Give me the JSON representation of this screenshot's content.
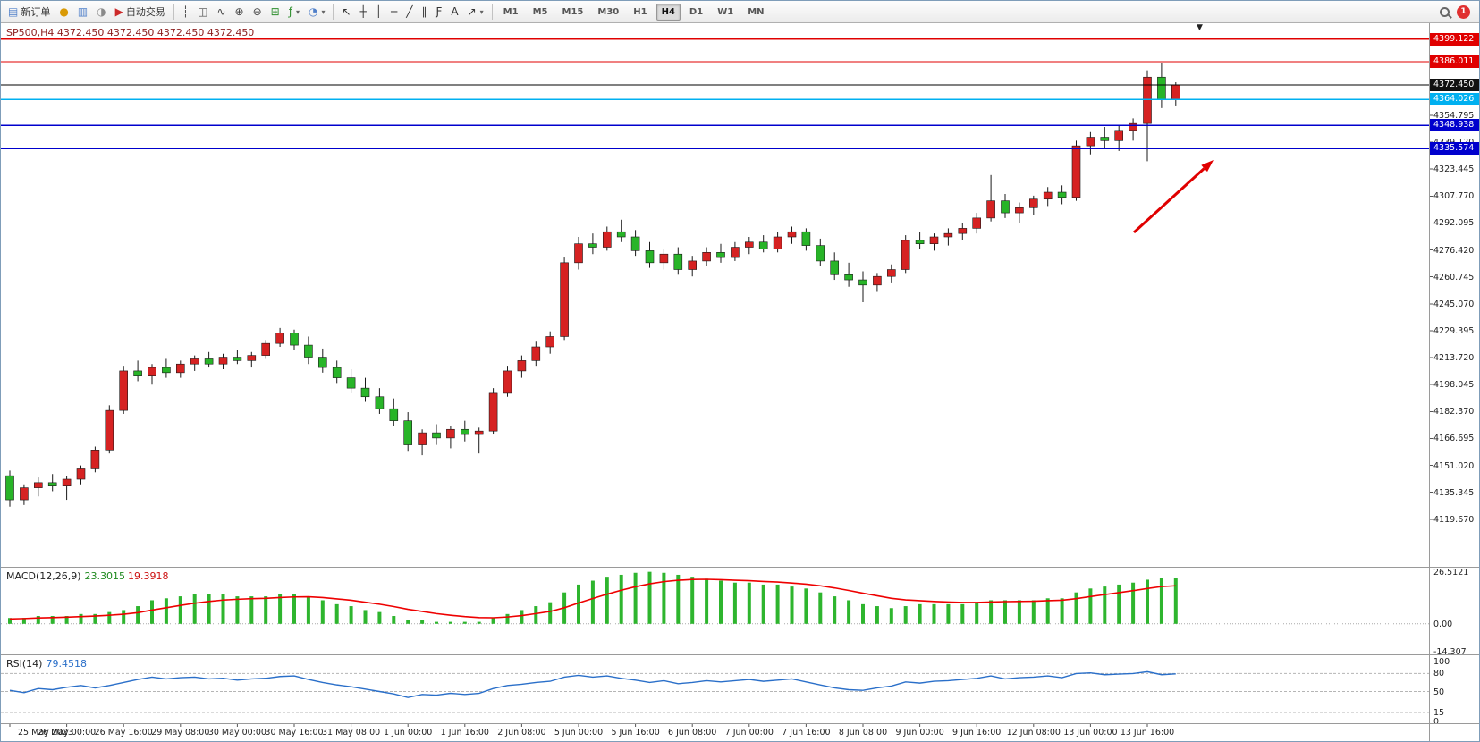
{
  "toolbar": {
    "groups": [
      {
        "name": "trade-group",
        "items": [
          {
            "name": "new-order-button",
            "icon": "new-order-icon",
            "glyph": "▤",
            "glyph_color": "#4f7fc9",
            "label": "新订单"
          },
          {
            "name": "gold-symbol-icon",
            "icon": "gold-symbol-icon",
            "glyph": "●",
            "glyph_color": "#d99a06"
          },
          {
            "name": "market-watch-icon",
            "icon": "market-watch-icon",
            "glyph": "▥",
            "glyph_color": "#4f7fc9"
          },
          {
            "name": "navigator-icon",
            "icon": "navigator-icon",
            "glyph": "◑",
            "glyph_color": "#8a8a8a"
          },
          {
            "name": "autotrading-button",
            "icon": "autotrading-icon",
            "glyph": "▶",
            "glyph_color": "#cc2a2a",
            "label": "自动交易"
          }
        ]
      },
      {
        "name": "chart-controls-group",
        "items": [
          {
            "name": "bar-chart-icon",
            "glyph": "┆",
            "glyph_color": "#444444"
          },
          {
            "name": "candlestick-chart-icon",
            "glyph": "◫",
            "glyph_color": "#444444"
          },
          {
            "name": "line-chart-icon",
            "glyph": "∿",
            "glyph_color": "#444444"
          },
          {
            "name": "zoom-in-icon",
            "glyph": "⊕",
            "glyph_color": "#444444"
          },
          {
            "name": "zoom-out-icon",
            "glyph": "⊖",
            "glyph_color": "#444444"
          },
          {
            "name": "tile-windows-icon",
            "glyph": "⊞",
            "glyph_color": "#2f8f2f"
          },
          {
            "name": "indicators-icon",
            "glyph": "ƒ",
            "glyph_color": "#2f8f2f",
            "caret": true
          },
          {
            "name": "periods-icon",
            "glyph": "◔",
            "glyph_color": "#4f7fc9",
            "caret": true
          }
        ]
      },
      {
        "name": "drawing-tools-group",
        "items": [
          {
            "name": "cursor-icon",
            "glyph": "↖",
            "glyph_color": "#333333"
          },
          {
            "name": "crosshair-icon",
            "glyph": "┼",
            "glyph_color": "#333333"
          },
          {
            "name": "vertical-line-icon",
            "glyph": "│",
            "glyph_color": "#333333"
          },
          {
            "name": "horizontal-line-icon",
            "glyph": "─",
            "glyph_color": "#333333"
          },
          {
            "name": "trendline-icon",
            "glyph": "╱",
            "glyph_color": "#333333"
          },
          {
            "name": "equidistant-channel-icon",
            "glyph": "∥",
            "glyph_color": "#333333"
          },
          {
            "name": "fibonacci-icon",
            "glyph": "Ƒ",
            "glyph_color": "#333333"
          },
          {
            "name": "text-label-icon",
            "glyph": "A",
            "glyph_color": "#333333"
          },
          {
            "name": "arrows-tool-icon",
            "glyph": "↗",
            "glyph_color": "#333333",
            "caret": true
          }
        ]
      },
      {
        "name": "timeframe-group",
        "items": [
          {
            "name": "timeframe-m1",
            "label": "M1"
          },
          {
            "name": "timeframe-m5",
            "label": "M5"
          },
          {
            "name": "timeframe-m15",
            "label": "M15"
          },
          {
            "name": "timeframe-m30",
            "label": "M30"
          },
          {
            "name": "timeframe-h1",
            "label": "H1"
          },
          {
            "name": "timeframe-h4",
            "label": "H4",
            "active": true
          },
          {
            "name": "timeframe-d1",
            "label": "D1"
          },
          {
            "name": "timeframe-w1",
            "label": "W1"
          },
          {
            "name": "timeframe-mn",
            "label": "MN"
          }
        ]
      }
    ],
    "right": [
      {
        "name": "search-icon",
        "type": "search"
      },
      {
        "name": "notification-badge",
        "label": "1",
        "color": "#e03030"
      }
    ]
  },
  "chart_data": {
    "type": "candlestick",
    "symbol": "SP500",
    "timeframe": "H4",
    "title": "SP500,H4 4372.450 4372.450 4372.450 4372.450",
    "ohlc_display": [
      "4372.450",
      "4372.450",
      "4372.450",
      "4372.450"
    ],
    "shift_marker_glyph": "▼",
    "up_color": "#d62222",
    "down_color": "#28b428",
    "current_price": {
      "value": 4372.45,
      "label": "4372.450",
      "line_color": "#000000",
      "badge_color": "#111111"
    },
    "levels": [
      {
        "name": "resistance-line-1",
        "price": 4399.122,
        "label": "4399.122",
        "color": "#e00000",
        "width": 1.3
      },
      {
        "name": "resistance-line-2",
        "price": 4386.011,
        "label": "4386.011",
        "color": "#e00000",
        "width": 1.3
      },
      {
        "name": "support-line-cyan",
        "price": 4364.026,
        "label": "4364.026",
        "color": "#00b0f0",
        "width": 1.8
      },
      {
        "name": "support-line-blue-1",
        "price": 4348.938,
        "label": "4348.938",
        "color": "#0000cd",
        "width": 1.5
      },
      {
        "name": "support-line-blue-2",
        "price": 4335.574,
        "label": "4335.574",
        "color": "#0000cd",
        "width": 2
      }
    ],
    "price_axis_labels": [
      "4354.795",
      "4339.120",
      "4323.445",
      "4307.770",
      "4292.095",
      "4276.420",
      "4260.745",
      "4245.070",
      "4229.395",
      "4213.720",
      "4198.045",
      "4182.370",
      "4166.695",
      "4151.020",
      "4135.345",
      "4119.670"
    ],
    "time_axis_labels": [
      "25 May 2023",
      "26 May 00:00",
      "26 May 16:00",
      "29 May 08:00",
      "30 May 00:00",
      "30 May 16:00",
      "31 May 08:00",
      "1 Jun 00:00",
      "1 Jun 16:00",
      "2 Jun 08:00",
      "5 Jun 00:00",
      "5 Jun 16:00",
      "6 Jun 08:00",
      "7 Jun 00:00",
      "7 Jun 16:00",
      "8 Jun 08:00",
      "9 Jun 00:00",
      "9 Jun 16:00",
      "12 Jun 08:00",
      "13 Jun 00:00",
      "13 Jun 16:00"
    ],
    "candles": [
      [
        4145,
        4148,
        4127,
        4131
      ],
      [
        4131,
        4140,
        4128,
        4138
      ],
      [
        4138,
        4144,
        4133,
        4141
      ],
      [
        4141,
        4146,
        4136,
        4139
      ],
      [
        4139,
        4145,
        4131,
        4143
      ],
      [
        4143,
        4151,
        4140,
        4149
      ],
      [
        4149,
        4162,
        4147,
        4160
      ],
      [
        4160,
        4186,
        4158,
        4183
      ],
      [
        4183,
        4209,
        4181,
        4206
      ],
      [
        4206,
        4212,
        4200,
        4203
      ],
      [
        4203,
        4210,
        4198,
        4208
      ],
      [
        4208,
        4213,
        4202,
        4205
      ],
      [
        4205,
        4212,
        4202,
        4210
      ],
      [
        4210,
        4215,
        4206,
        4213
      ],
      [
        4213,
        4217,
        4208,
        4210
      ],
      [
        4210,
        4216,
        4207,
        4214
      ],
      [
        4214,
        4218,
        4210,
        4212
      ],
      [
        4212,
        4217,
        4208,
        4215
      ],
      [
        4215,
        4224,
        4213,
        4222
      ],
      [
        4222,
        4231,
        4220,
        4228
      ],
      [
        4228,
        4230,
        4218,
        4221
      ],
      [
        4221,
        4226,
        4210,
        4214
      ],
      [
        4214,
        4219,
        4205,
        4208
      ],
      [
        4208,
        4212,
        4199,
        4202
      ],
      [
        4202,
        4207,
        4193,
        4196
      ],
      [
        4196,
        4202,
        4188,
        4191
      ],
      [
        4191,
        4196,
        4181,
        4184
      ],
      [
        4184,
        4190,
        4174,
        4177
      ],
      [
        4177,
        4182,
        4159,
        4163
      ],
      [
        4163,
        4172,
        4157,
        4170
      ],
      [
        4170,
        4175,
        4163,
        4167
      ],
      [
        4167,
        4174,
        4161,
        4172
      ],
      [
        4172,
        4177,
        4165,
        4169
      ],
      [
        4169,
        4173,
        4158,
        4171
      ],
      [
        4171,
        4196,
        4169,
        4193
      ],
      [
        4193,
        4209,
        4191,
        4206
      ],
      [
        4206,
        4215,
        4202,
        4212
      ],
      [
        4212,
        4223,
        4209,
        4220
      ],
      [
        4220,
        4229,
        4216,
        4226
      ],
      [
        4226,
        4272,
        4224,
        4269
      ],
      [
        4269,
        4284,
        4265,
        4280
      ],
      [
        4280,
        4286,
        4274,
        4278
      ],
      [
        4278,
        4290,
        4276,
        4287
      ],
      [
        4287,
        4294,
        4281,
        4284
      ],
      [
        4284,
        4288,
        4273,
        4276
      ],
      [
        4276,
        4281,
        4266,
        4269
      ],
      [
        4269,
        4277,
        4265,
        4274
      ],
      [
        4274,
        4278,
        4262,
        4265
      ],
      [
        4265,
        4273,
        4261,
        4270
      ],
      [
        4270,
        4278,
        4267,
        4275
      ],
      [
        4275,
        4280,
        4269,
        4272
      ],
      [
        4272,
        4281,
        4270,
        4278
      ],
      [
        4278,
        4284,
        4274,
        4281
      ],
      [
        4281,
        4285,
        4275,
        4277
      ],
      [
        4277,
        4287,
        4275,
        4284
      ],
      [
        4284,
        4290,
        4280,
        4287
      ],
      [
        4287,
        4289,
        4276,
        4279
      ],
      [
        4279,
        4283,
        4267,
        4270
      ],
      [
        4270,
        4275,
        4259,
        4262
      ],
      [
        4262,
        4269,
        4255,
        4259
      ],
      [
        4259,
        4264,
        4246,
        4256
      ],
      [
        4256,
        4263,
        4252,
        4261
      ],
      [
        4261,
        4268,
        4257,
        4265
      ],
      [
        4265,
        4285,
        4263,
        4282
      ],
      [
        4282,
        4287,
        4277,
        4280
      ],
      [
        4280,
        4286,
        4276,
        4284
      ],
      [
        4284,
        4289,
        4279,
        4286
      ],
      [
        4286,
        4292,
        4282,
        4289
      ],
      [
        4289,
        4298,
        4286,
        4295
      ],
      [
        4295,
        4320,
        4293,
        4305
      ],
      [
        4305,
        4309,
        4295,
        4298
      ],
      [
        4298,
        4304,
        4292,
        4301
      ],
      [
        4301,
        4308,
        4297,
        4306
      ],
      [
        4306,
        4313,
        4302,
        4310
      ],
      [
        4310,
        4314,
        4303,
        4307
      ],
      [
        4307,
        4340,
        4305,
        4337
      ],
      [
        4337,
        4345,
        4332,
        4342
      ],
      [
        4342,
        4348,
        4336,
        4340
      ],
      [
        4340,
        4349,
        4334,
        4346
      ],
      [
        4346,
        4353,
        4340,
        4350
      ],
      [
        4350,
        4381,
        4328,
        4377
      ],
      [
        4377,
        4385,
        4359,
        4364
      ],
      [
        4364,
        4374,
        4360,
        4372.45
      ]
    ],
    "macd": {
      "label": "MACD(12,26,9)",
      "value_main": "23.3015",
      "value_signal": "19.3918",
      "axis_labels": [
        "26.5121",
        "0.00",
        "-14.307"
      ],
      "histogram_color": "#2eb52e",
      "signal_color": "#ee0000",
      "histogram": [
        3,
        3,
        4,
        4,
        4,
        5,
        5,
        6,
        7,
        9,
        12,
        13,
        14,
        15,
        15,
        15,
        14,
        14,
        14,
        15,
        15,
        14,
        12,
        10,
        9,
        7,
        6,
        4,
        2,
        2,
        1,
        1,
        1,
        1,
        3,
        5,
        7,
        9,
        11,
        16,
        20,
        22,
        24,
        25,
        26,
        26.5,
        26,
        25,
        24,
        23,
        22,
        21,
        21,
        20,
        20,
        19,
        18,
        16,
        14,
        12,
        10,
        9,
        8,
        9,
        10,
        10,
        10,
        10,
        11,
        12,
        12,
        12,
        12,
        13,
        13,
        16,
        18,
        19,
        20,
        21,
        22.5,
        23.5,
        23.3
      ],
      "signal": [
        2.5,
        2.7,
        3,
        3.2,
        3.4,
        3.7,
        4,
        4.4,
        4.9,
        5.7,
        7,
        8.2,
        9.4,
        10.5,
        11.4,
        12.1,
        12.5,
        12.8,
        13,
        13.4,
        13.7,
        13.8,
        13.4,
        12.7,
        12,
        11,
        10,
        8.8,
        7.4,
        6.3,
        5.2,
        4.4,
        3.7,
        3.2,
        3.1,
        3.5,
        4.2,
        5.2,
        6.3,
        8.2,
        10.6,
        12.9,
        15.1,
        17.1,
        18.9,
        20.4,
        21.5,
        22.2,
        22.6,
        22.7,
        22.5,
        22.2,
        22,
        21.6,
        21.3,
        20.8,
        20.2,
        19.4,
        18.3,
        17,
        15.6,
        14.3,
        13,
        12.2,
        11.8,
        11.4,
        11.1,
        10.9,
        10.9,
        11.1,
        11.3,
        11.4,
        11.5,
        11.8,
        12,
        12.8,
        13.9,
        14.9,
        15.9,
        16.9,
        18,
        19,
        19.39
      ]
    },
    "rsi": {
      "label": "RSI(14)",
      "value": "79.4518",
      "line_color": "#2a6fc9",
      "levels": [
        80,
        50,
        15
      ],
      "axis_labels": [
        "100",
        "80",
        "50",
        "15",
        "0"
      ],
      "values": [
        52,
        48,
        55,
        53,
        57,
        60,
        56,
        60,
        65,
        70,
        74,
        71,
        73,
        74,
        71,
        72,
        69,
        71,
        72,
        75,
        76,
        70,
        65,
        61,
        58,
        54,
        50,
        46,
        40,
        45,
        44,
        47,
        45,
        47,
        55,
        60,
        62,
        65,
        67,
        74,
        77,
        74,
        76,
        72,
        69,
        65,
        68,
        63,
        65,
        68,
        66,
        68,
        70,
        67,
        69,
        71,
        66,
        61,
        56,
        53,
        52,
        56,
        59,
        66,
        64,
        67,
        68,
        70,
        72,
        76,
        71,
        73,
        74,
        76,
        73,
        80,
        81,
        78,
        79,
        80,
        83,
        78,
        79.45
      ]
    },
    "annotation_arrow": {
      "color": "#e00000"
    }
  }
}
